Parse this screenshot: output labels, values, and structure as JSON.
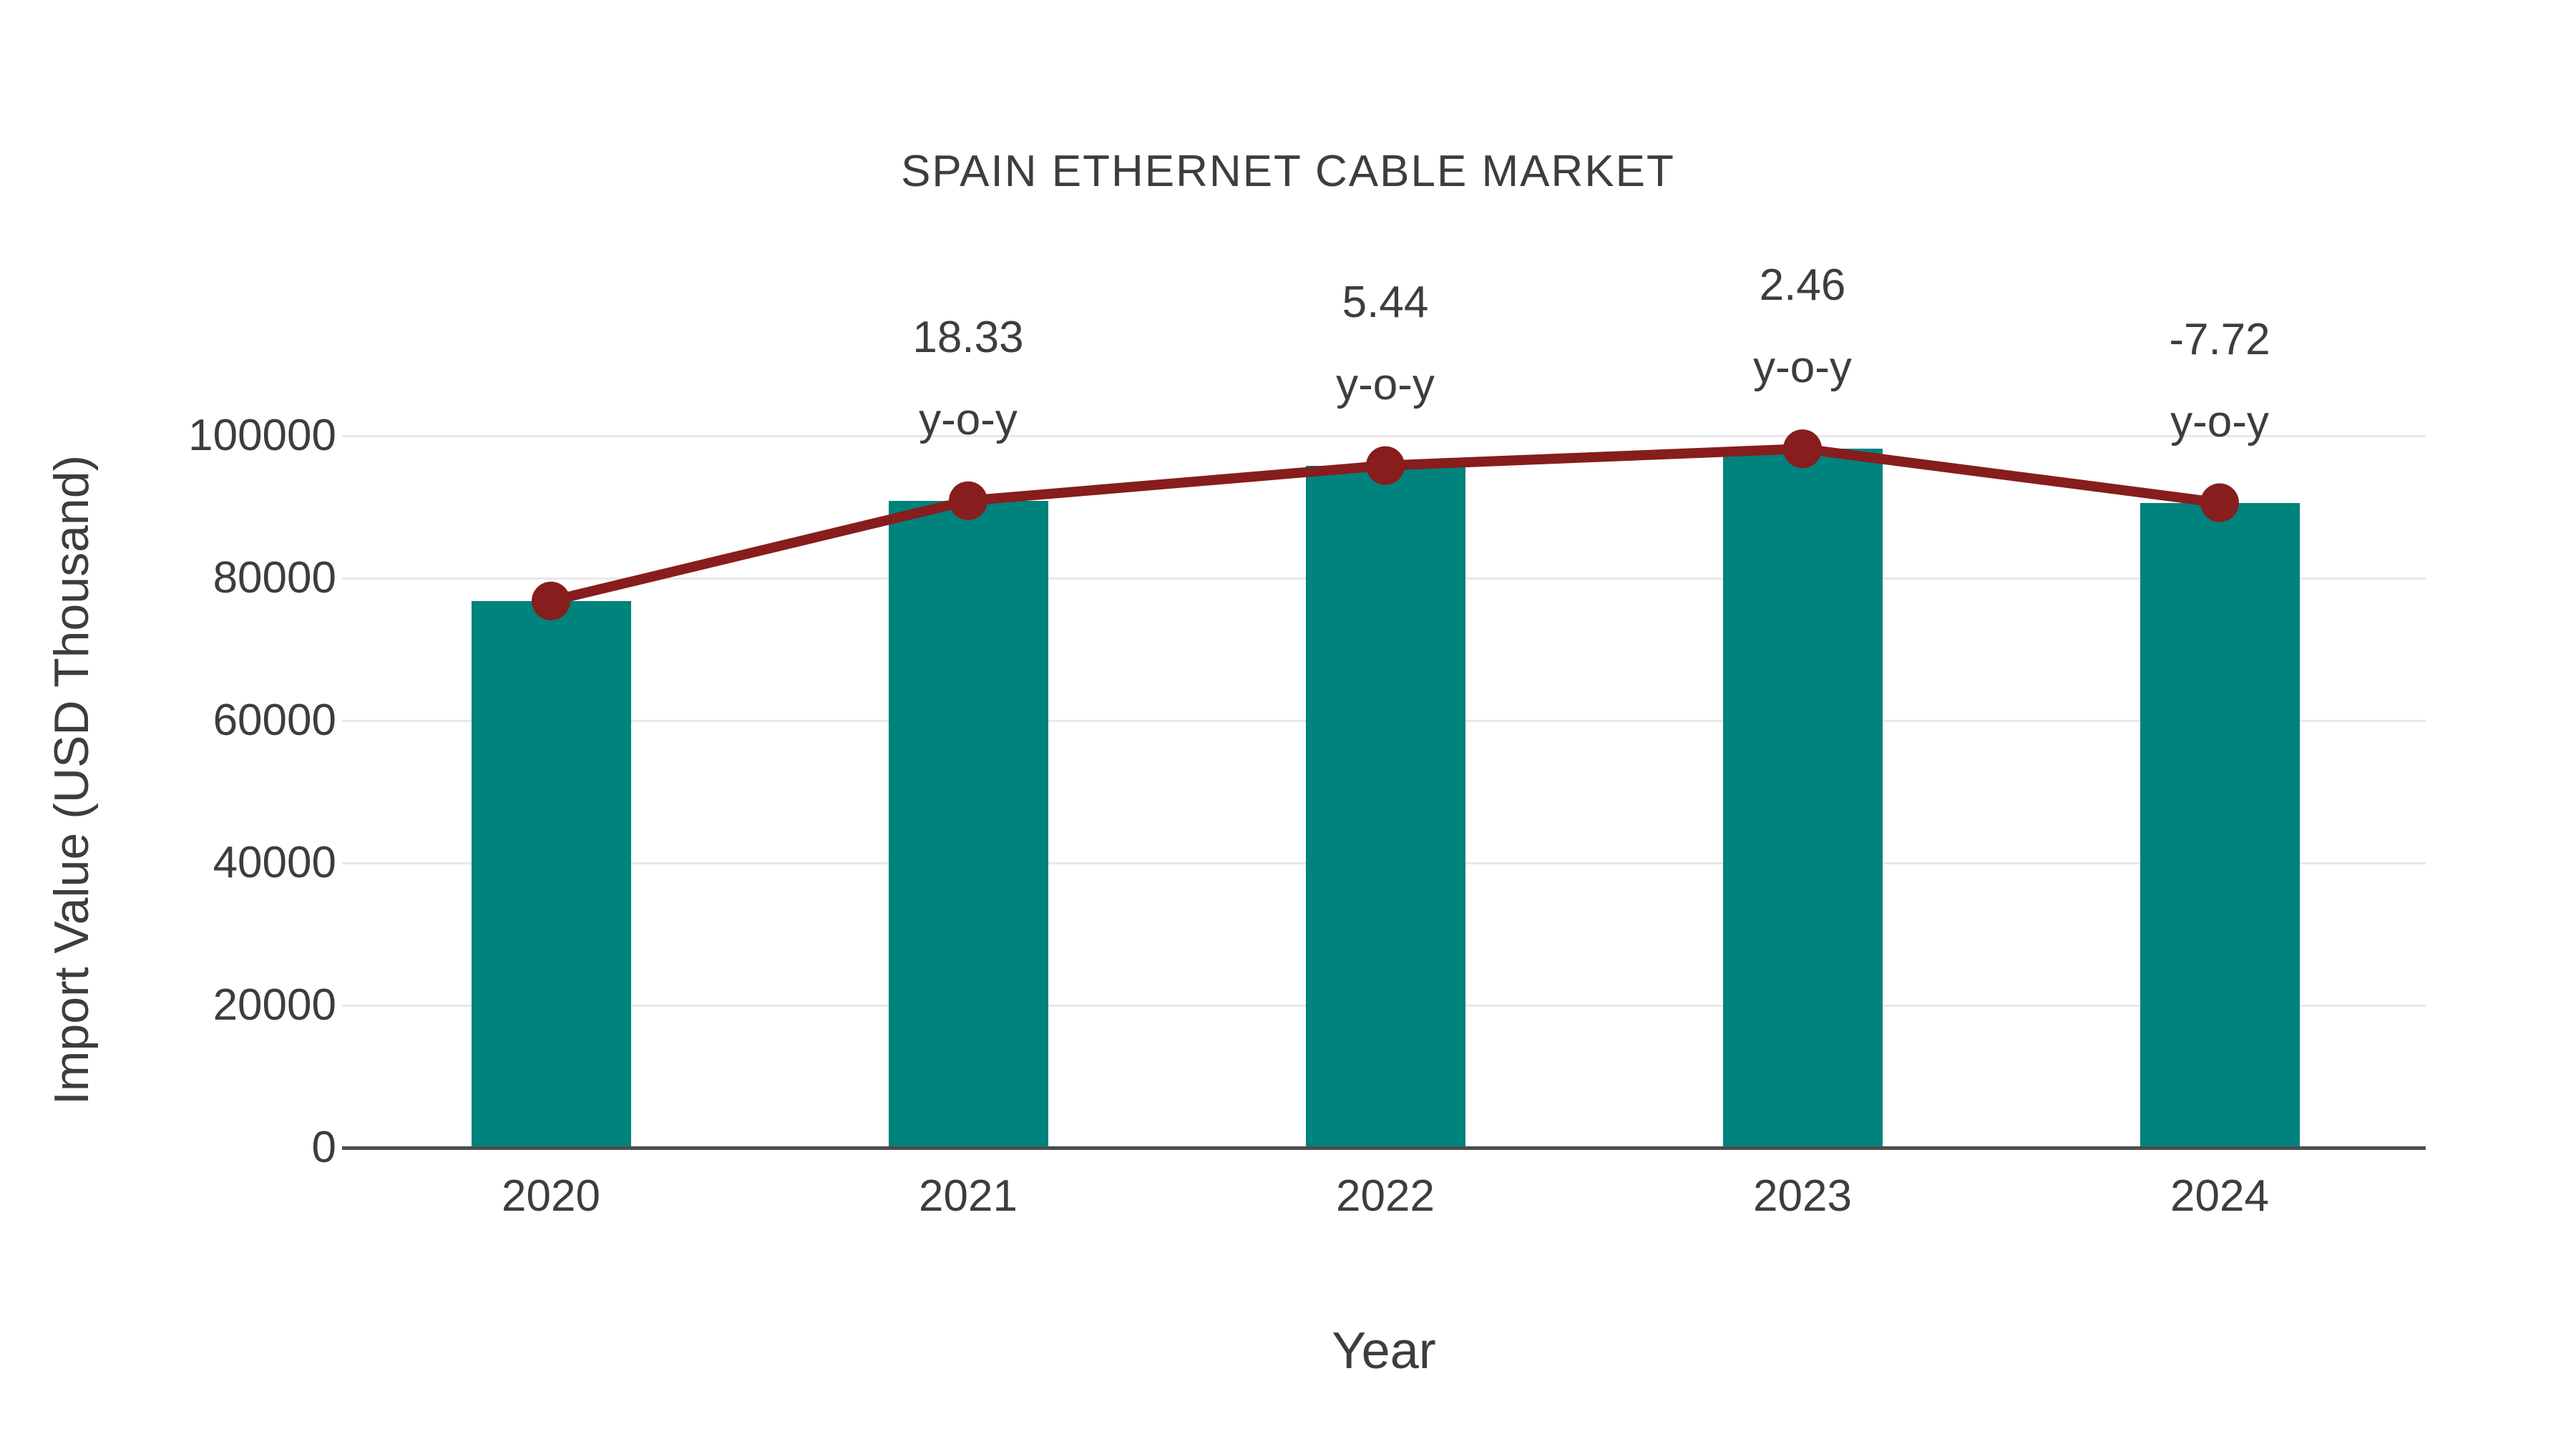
{
  "title": "SPAIN ETHERNET CABLE MARKET",
  "x_axis": {
    "label": "Year",
    "ticks": [
      "2020",
      "2021",
      "2022",
      "2023",
      "2024"
    ]
  },
  "y_axis": {
    "label": "Import Value (USD Thousand)",
    "ticks": [
      "0",
      "20000",
      "40000",
      "60000",
      "80000",
      "100000"
    ]
  },
  "colors": {
    "background": "#FFFFFF",
    "bar": "#00827D",
    "line": "#871D1D",
    "marker": "#871D1D",
    "text": "#3D3D3D",
    "grid": "#E8E8E8",
    "axis_line": "#4D4D4D"
  },
  "chart_data": {
    "type": "bar",
    "title": "SPAIN ETHERNET CABLE MARKET",
    "xlabel": "Year",
    "ylabel": "Import Value (USD Thousand)",
    "categories": [
      "2020",
      "2021",
      "2022",
      "2023",
      "2024"
    ],
    "ylim": [
      0,
      100000
    ],
    "y_ticks": [
      0,
      20000,
      40000,
      60000,
      80000,
      100000
    ],
    "grid": true,
    "legend": false,
    "series": [
      {
        "name": "Import Value",
        "type": "bar",
        "color": "#00827D",
        "values": [
          76800,
          90880,
          95820,
          98180,
          90600
        ]
      },
      {
        "name": "Y-o-Y",
        "type": "line",
        "color": "#871D1D",
        "values": [
          76800,
          90880,
          95820,
          98180,
          90600
        ]
      }
    ],
    "yoy_labels": [
      "",
      "18.33",
      "5.44",
      "2.46",
      "-7.72"
    ],
    "yoy_suffix": "y-o-y"
  }
}
